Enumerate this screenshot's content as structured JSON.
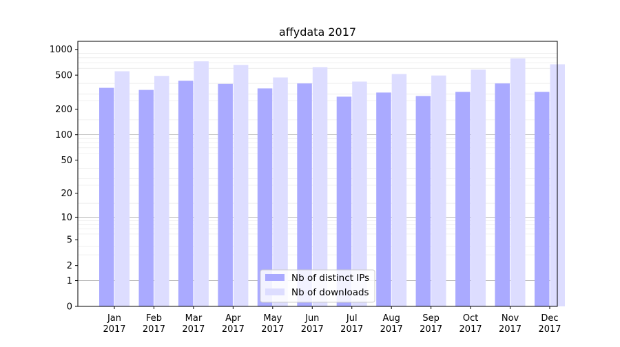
{
  "chart_data": {
    "type": "bar",
    "title": "affydata 2017",
    "xlabel": "",
    "ylabel": "",
    "y_scale": "log(1 + y)",
    "ylim": [
      0,
      1000
    ],
    "y_ticks": [
      {
        "value": 0,
        "label": "0"
      },
      {
        "value": 1,
        "label": "1"
      },
      {
        "value": 2,
        "label": "2"
      },
      {
        "value": 5,
        "label": "5"
      },
      {
        "value": 10,
        "label": "10"
      },
      {
        "value": 20,
        "label": "20"
      },
      {
        "value": 50,
        "label": "50"
      },
      {
        "value": 100,
        "label": "100"
      },
      {
        "value": 200,
        "label": "200"
      },
      {
        "value": 500,
        "label": "500"
      },
      {
        "value": 1000,
        "label": "1000"
      }
    ],
    "categories": [
      "Jan",
      "Feb",
      "Mar",
      "Apr",
      "May",
      "Jun",
      "Jul",
      "Aug",
      "Sep",
      "Oct",
      "Nov",
      "Dec"
    ],
    "category_year": "2017",
    "grid": true,
    "legend_position": "bottom-center",
    "series": [
      {
        "name": "Nb of distinct IPs",
        "color": "#aaaaff",
        "values": [
          355,
          336,
          430,
          395,
          350,
          400,
          280,
          313,
          285,
          318,
          400,
          318
        ]
      },
      {
        "name": "Nb of downloads",
        "color": "#ddddff",
        "values": [
          555,
          490,
          725,
          660,
          470,
          620,
          420,
          515,
          495,
          580,
          785,
          670
        ]
      }
    ]
  }
}
